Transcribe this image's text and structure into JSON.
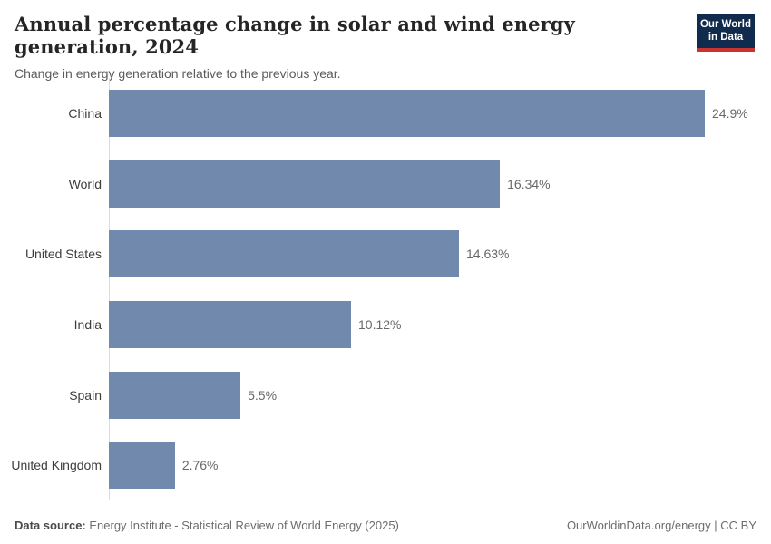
{
  "header": {
    "title": "Annual percentage change in solar and wind energy generation, 2024",
    "subtitle": "Change in energy generation relative to the previous year."
  },
  "logo": {
    "line1": "Our World",
    "line2": "in Data",
    "bg_color": "#112b4e",
    "accent_color": "#cb342e"
  },
  "chart_data": {
    "type": "bar",
    "orientation": "horizontal",
    "title": "Annual percentage change in solar and wind energy generation, 2024",
    "subtitle": "Change in energy generation relative to the previous year.",
    "unit": "%",
    "categories": [
      "China",
      "World",
      "United States",
      "India",
      "Spain",
      "United Kingdom"
    ],
    "values": [
      24.9,
      16.34,
      14.63,
      10.12,
      5.5,
      2.76
    ],
    "value_labels": [
      "24.9%",
      "16.34%",
      "14.63%",
      "10.12%",
      "5.5%",
      "2.76%"
    ],
    "xlim": [
      0,
      24.9
    ],
    "grid": false,
    "legend": false,
    "bar_color": "#7089ad",
    "axis_line_color": "#dcdcdc"
  },
  "footer": {
    "datasource_label": "Data source:",
    "datasource_text": " Energy Institute - Statistical Review of World Energy (2025)",
    "credit": "OurWorldinData.org/energy | CC BY"
  }
}
